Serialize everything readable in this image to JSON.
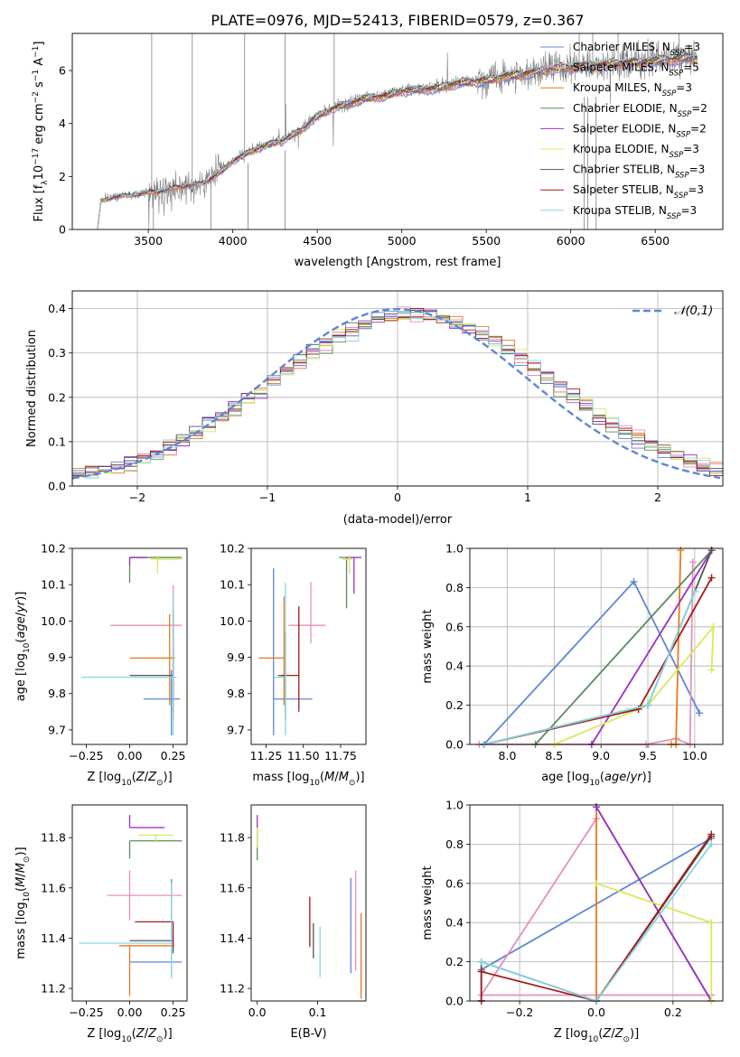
{
  "title": "PLATE=0976, MJD=52413, FIBERID=0579, z=0.367",
  "colors": {
    "chabrier_miles": "#5e86d6",
    "salpeter_miles": "#e58fbd",
    "kroupa_miles": "#e8791f",
    "chabrier_elodie": "#5c8a5c",
    "salpeter_elodie": "#9b30c9",
    "kroupa_elodie": "#d5ea5a",
    "chabrier_stelib": "#555555",
    "salpeter_stelib": "#a51b1b",
    "kroupa_stelib": "#86d5e0",
    "data": "#808080",
    "normal": "#5e86d6"
  },
  "legend": [
    {
      "label": "Chabrier MILES, N",
      "sub": "SSP",
      "suffix": "=3",
      "color": "chabrier_miles"
    },
    {
      "label": "Salpeter MILES, N",
      "sub": "SSP",
      "suffix": "=5",
      "color": "salpeter_miles"
    },
    {
      "label": "Kroupa MILES, N",
      "sub": "SSP",
      "suffix": "=3",
      "color": "kroupa_miles"
    },
    {
      "label": "Chabrier ELODIE, N",
      "sub": "SSP",
      "suffix": "=2",
      "color": "chabrier_elodie"
    },
    {
      "label": "Salpeter ELODIE, N",
      "sub": "SSP",
      "suffix": "=2",
      "color": "salpeter_elodie"
    },
    {
      "label": "Kroupa ELODIE, N",
      "sub": "SSP",
      "suffix": "=3",
      "color": "kroupa_elodie"
    },
    {
      "label": "Chabrier STELIB, N",
      "sub": "SSP",
      "suffix": "=3",
      "color": "chabrier_stelib"
    },
    {
      "label": "Salpeter STELIB, N",
      "sub": "SSP",
      "suffix": "=3",
      "color": "salpeter_stelib"
    },
    {
      "label": "Kroupa STELIB, N",
      "sub": "SSP",
      "suffix": "=3",
      "color": "kroupa_stelib"
    }
  ],
  "chart_data": [
    {
      "id": "spectrum",
      "type": "line",
      "xlabel": "wavelength [Angstrom, rest frame]",
      "ylabel": "Flux [f_λ 10^-17 erg cm^-2 s^-1 A^-1]",
      "xlim": [
        3050,
        6900
      ],
      "ylim": [
        0,
        7.4
      ],
      "xticks": [
        3500,
        4000,
        4500,
        5000,
        5500,
        6000,
        6500
      ],
      "yticks": [
        0,
        2,
        4,
        6
      ],
      "grid": false,
      "legend_position": "top-right",
      "continuum_points": [
        [
          3200,
          0.0
        ],
        [
          3220,
          1.1
        ],
        [
          3300,
          1.25
        ],
        [
          3400,
          1.3
        ],
        [
          3500,
          1.4
        ],
        [
          3600,
          1.5
        ],
        [
          3700,
          1.65
        ],
        [
          3800,
          1.7
        ],
        [
          3850,
          1.85
        ],
        [
          3950,
          2.3
        ],
        [
          4000,
          2.6
        ],
        [
          4100,
          2.95
        ],
        [
          4200,
          3.2
        ],
        [
          4300,
          3.4
        ],
        [
          4400,
          3.75
        ],
        [
          4500,
          4.3
        ],
        [
          4600,
          4.6
        ],
        [
          4700,
          4.8
        ],
        [
          4800,
          5.0
        ],
        [
          4900,
          5.05
        ],
        [
          5000,
          5.25
        ],
        [
          5100,
          5.3
        ],
        [
          5200,
          5.35
        ],
        [
          5300,
          5.5
        ],
        [
          5400,
          5.6
        ],
        [
          5500,
          5.65
        ],
        [
          5600,
          5.8
        ],
        [
          5700,
          5.85
        ],
        [
          5800,
          6.0
        ],
        [
          5900,
          6.1
        ],
        [
          6000,
          6.15
        ],
        [
          6100,
          6.2
        ],
        [
          6200,
          6.25
        ],
        [
          6300,
          6.3
        ],
        [
          6400,
          6.35
        ],
        [
          6500,
          6.4
        ],
        [
          6600,
          6.45
        ],
        [
          6700,
          6.5
        ],
        [
          6750,
          6.5
        ]
      ]
    },
    {
      "id": "residual-histogram",
      "type": "histogram",
      "xlabel": "(data-model)/error",
      "ylabel": "Normed distribution",
      "xlim": [
        -2.5,
        2.5
      ],
      "ylim": [
        0,
        0.44
      ],
      "xticks": [
        -2,
        -1,
        0,
        1,
        2
      ],
      "yticks": [
        0.0,
        0.1,
        0.2,
        0.3,
        0.4
      ],
      "grid": true,
      "legend_position": "top-right",
      "reference_curve": "𝒩(0,1)",
      "bin_width": 0.1
    },
    {
      "id": "age-vs-Z",
      "type": "errorbar",
      "xlabel": "Z [log10(Z/Z⊙)]",
      "ylabel": "age  [log10(age/yr)]",
      "xlim": [
        -0.33,
        0.33
      ],
      "ylim": [
        9.66,
        10.2
      ],
      "xticks": [
        -0.25,
        0.0,
        0.25
      ],
      "yticks": [
        9.7,
        9.8,
        9.9,
        10.0,
        10.1,
        10.2
      ],
      "points": [
        {
          "color": "chabrier_miles",
          "x": 0.24,
          "xerr": [
            0.16,
            0.05
          ],
          "y": 9.785,
          "yerr": [
            0.1,
            0.08
          ]
        },
        {
          "color": "salpeter_miles",
          "x": 0.25,
          "xerr": [
            0.36,
            0.05
          ],
          "y": 9.988,
          "yerr": [
            0.13,
            0.11
          ]
        },
        {
          "color": "kroupa_miles",
          "x": 0.23,
          "xerr": [
            0.23,
            0.03
          ],
          "y": 9.898,
          "yerr": [
            0.13,
            0.12
          ]
        },
        {
          "color": "chabrier_elodie",
          "x": 0.0,
          "xerr": [
            0.0,
            0.3
          ],
          "y": 10.175,
          "yerr": [
            0.07,
            0.0
          ]
        },
        {
          "color": "salpeter_elodie",
          "x": 0.0,
          "xerr": [
            0.0,
            0.1
          ],
          "y": 10.175,
          "yerr": [
            0.02,
            0.0
          ]
        },
        {
          "color": "kroupa_elodie",
          "x": 0.16,
          "xerr": [
            0.04,
            0.14
          ],
          "y": 10.17,
          "yerr": [
            0.04,
            0.01
          ]
        },
        {
          "color": "chabrier_stelib",
          "x": 0.25,
          "xerr": [
            0.25,
            0.0
          ],
          "y": 9.85,
          "yerr": [
            0.12,
            0.08
          ]
        },
        {
          "color": "salpeter_stelib",
          "x": 0.25,
          "xerr": [
            0.0,
            0.0
          ],
          "y": 9.85,
          "yerr": [
            0.1,
            0.18
          ]
        },
        {
          "color": "kroupa_stelib",
          "x": 0.25,
          "xerr": [
            0.53,
            0.02
          ],
          "y": 9.845,
          "yerr": [
            0.16,
            0.23
          ]
        }
      ]
    },
    {
      "id": "age-vs-mass",
      "type": "errorbar",
      "xlabel": "mass [log10(M/M⊙)]",
      "ylabel": "",
      "xlim": [
        11.15,
        11.92
      ],
      "ylim": [
        9.66,
        10.2
      ],
      "xticks": [
        11.25,
        11.5,
        11.75
      ],
      "yticks": [
        9.7,
        9.8,
        9.9,
        10.0,
        10.1,
        10.2
      ],
      "points": [
        {
          "color": "chabrier_miles",
          "x": 11.3,
          "xerr": [
            0.0,
            0.26
          ],
          "y": 9.785,
          "yerr": [
            0.1,
            0.36
          ]
        },
        {
          "color": "salpeter_miles",
          "x": 11.55,
          "xerr": [
            0.15,
            0.1
          ],
          "y": 9.988,
          "yerr": [
            0.05,
            0.12
          ]
        },
        {
          "color": "kroupa_miles",
          "x": 11.37,
          "xerr": [
            0.17,
            0.0
          ],
          "y": 9.898,
          "yerr": [
            0.13,
            0.17
          ]
        },
        {
          "color": "chabrier_elodie",
          "x": 11.79,
          "xerr": [
            0.05,
            0.0
          ],
          "y": 10.175,
          "yerr": [
            0.14,
            0.0
          ]
        },
        {
          "color": "salpeter_elodie",
          "x": 11.84,
          "xerr": [
            0.05,
            0.05
          ],
          "y": 10.175,
          "yerr": [
            0.1,
            0.0
          ]
        },
        {
          "color": "kroupa_elodie",
          "x": 11.81,
          "xerr": [
            0.05,
            0.02
          ],
          "y": 10.17,
          "yerr": [
            0.04,
            0.01
          ]
        },
        {
          "color": "chabrier_stelib",
          "x": 11.38,
          "xerr": [
            0.05,
            0.0
          ],
          "y": 9.85,
          "yerr": [
            0.12,
            0.12
          ]
        },
        {
          "color": "salpeter_stelib",
          "x": 11.47,
          "xerr": [
            0.12,
            0.0
          ],
          "y": 9.85,
          "yerr": [
            0.1,
            0.19
          ]
        },
        {
          "color": "kroupa_stelib",
          "x": 11.38,
          "xerr": [
            0.08,
            0.0
          ],
          "y": 9.845,
          "yerr": [
            0.16,
            0.26
          ]
        }
      ]
    },
    {
      "id": "mass-weight-vs-age",
      "type": "line",
      "xlabel": "age  [log10(age/yr)]",
      "ylabel": "mass weight",
      "xlim": [
        7.6,
        10.3
      ],
      "ylim": [
        0,
        1.0
      ],
      "xticks": [
        8.0,
        8.5,
        9.0,
        9.5,
        10.0
      ],
      "yticks": [
        0.0,
        0.2,
        0.4,
        0.6,
        0.8,
        1.0
      ],
      "grid": true,
      "series": [
        {
          "color": "chabrier_miles",
          "x": [
            10.05,
            9.35,
            7.75
          ],
          "y": [
            0.16,
            0.83,
            0.0
          ]
        },
        {
          "color": "salpeter_miles",
          "x": [
            9.98,
            9.95,
            9.8,
            9.48,
            7.7
          ],
          "y": [
            0.93,
            0.0,
            0.03,
            0.0,
            0.0
          ]
        },
        {
          "color": "kroupa_miles",
          "x": [
            9.75,
            9.8,
            9.85
          ],
          "y": [
            0.0,
            0.0,
            0.99
          ]
        },
        {
          "color": "chabrier_elodie",
          "x": [
            10.18,
            8.3
          ],
          "y": [
            0.99,
            0.0
          ]
        },
        {
          "color": "salpeter_elodie",
          "x": [
            10.18,
            8.9
          ],
          "y": [
            0.99,
            0.0
          ]
        },
        {
          "color": "kroupa_elodie",
          "x": [
            10.18,
            10.2,
            9.5,
            8.5
          ],
          "y": [
            0.38,
            0.6,
            0.2,
            0.0
          ]
        },
        {
          "color": "chabrier_stelib",
          "x": [
            10.18,
            9.5,
            7.75
          ],
          "y": [
            0.99,
            0.2,
            0.0
          ]
        },
        {
          "color": "salpeter_stelib",
          "x": [
            10.18,
            9.4,
            7.75
          ],
          "y": [
            0.85,
            0.18,
            0.0
          ]
        },
        {
          "color": "kroupa_stelib",
          "x": [
            10.0,
            9.5,
            7.75
          ],
          "y": [
            0.78,
            0.2,
            0.0
          ]
        }
      ]
    },
    {
      "id": "mass-vs-Z",
      "type": "errorbar",
      "xlabel": "Z [log10(Z/Z⊙)]",
      "ylabel": "mass [log10(M/M⊙)]",
      "xlim": [
        -0.33,
        0.33
      ],
      "ylim": [
        11.15,
        11.93
      ],
      "xticks": [
        -0.25,
        0.0,
        0.25
      ],
      "yticks": [
        11.2,
        11.4,
        11.6,
        11.8
      ],
      "points": [
        {
          "color": "chabrier_miles",
          "x": 0.24,
          "xerr": [
            0.24,
            0.06
          ],
          "y": 11.305,
          "yerr": [
            0.05,
            0.33
          ]
        },
        {
          "color": "salpeter_miles",
          "x": 0.0,
          "xerr": [
            0.13,
            0.3
          ],
          "y": 11.57,
          "yerr": [
            0.1,
            0.1
          ]
        },
        {
          "color": "kroupa_miles",
          "x": 0.0,
          "xerr": [
            0.06,
            0.25
          ],
          "y": 11.37,
          "yerr": [
            0.2,
            0.0
          ]
        },
        {
          "color": "chabrier_elodie",
          "x": 0.0,
          "xerr": [
            0.0,
            0.3
          ],
          "y": 11.787,
          "yerr": [
            0.07,
            0.0
          ]
        },
        {
          "color": "salpeter_elodie",
          "x": 0.0,
          "xerr": [
            0.0,
            0.2
          ],
          "y": 11.84,
          "yerr": [
            0.0,
            0.05
          ]
        },
        {
          "color": "kroupa_elodie",
          "x": 0.15,
          "xerr": [
            0.1,
            0.1
          ],
          "y": 11.81,
          "yerr": [
            0.03,
            0.0
          ]
        },
        {
          "color": "chabrier_stelib",
          "x": 0.25,
          "xerr": [
            0.25,
            0.0
          ],
          "y": 11.39,
          "yerr": [
            0.05,
            0.0
          ]
        },
        {
          "color": "salpeter_stelib",
          "x": 0.25,
          "xerr": [
            0.22,
            0.0
          ],
          "y": 11.465,
          "yerr": [
            0.1,
            0.0
          ]
        },
        {
          "color": "kroupa_stelib",
          "x": 0.24,
          "xerr": [
            0.53,
            0.0
          ],
          "y": 11.38,
          "yerr": [
            0.14,
            0.24
          ]
        }
      ]
    },
    {
      "id": "mass-vs-ebv",
      "type": "errorbar",
      "xlabel": "E(B-V)",
      "ylabel": "",
      "xlim": [
        -0.01,
        0.18
      ],
      "ylim": [
        11.15,
        11.93
      ],
      "xticks": [
        0.0,
        0.1
      ],
      "yticks": [
        11.2,
        11.4,
        11.6,
        11.8
      ],
      "points": [
        {
          "color": "chabrier_miles",
          "x": 0.155,
          "xerr": [
            0.0,
            0.0
          ],
          "y": 11.45,
          "yerr": [
            0.19,
            0.19
          ]
        },
        {
          "color": "salpeter_miles",
          "x": 0.163,
          "xerr": [
            0.0,
            0.0
          ],
          "y": 11.47,
          "yerr": [
            0.2,
            0.2
          ]
        },
        {
          "color": "kroupa_miles",
          "x": 0.172,
          "xerr": [
            0.0,
            0.0
          ],
          "y": 11.33,
          "yerr": [
            0.17,
            0.17
          ]
        },
        {
          "color": "chabrier_elodie",
          "x": 0.0,
          "xerr": [
            0.0,
            0.0
          ],
          "y": 11.77,
          "yerr": [
            0.06,
            0.06
          ]
        },
        {
          "color": "salpeter_elodie",
          "x": 0.0,
          "xerr": [
            0.0,
            0.0
          ],
          "y": 11.84,
          "yerr": [
            0.05,
            0.05
          ]
        },
        {
          "color": "kroupa_elodie",
          "x": 0.0,
          "xerr": [
            0.0,
            0.0
          ],
          "y": 11.8,
          "yerr": [
            0.04,
            0.04
          ]
        },
        {
          "color": "chabrier_stelib",
          "x": 0.093,
          "xerr": [
            0.0,
            0.0
          ],
          "y": 11.39,
          "yerr": [
            0.07,
            0.07
          ]
        },
        {
          "color": "salpeter_stelib",
          "x": 0.087,
          "xerr": [
            0.0,
            0.0
          ],
          "y": 11.465,
          "yerr": [
            0.1,
            0.1
          ]
        },
        {
          "color": "kroupa_stelib",
          "x": 0.104,
          "xerr": [
            0.0,
            0.0
          ],
          "y": 11.345,
          "yerr": [
            0.1,
            0.1
          ]
        }
      ]
    },
    {
      "id": "mass-weight-vs-Z",
      "type": "line",
      "xlabel": "Z [log10(Z/Z⊙)]",
      "ylabel": "mass weight",
      "xlim": [
        -0.33,
        0.33
      ],
      "ylim": [
        0,
        1.0
      ],
      "xticks": [
        -0.2,
        0.0,
        0.2
      ],
      "yticks": [
        0.0,
        0.2,
        0.4,
        0.6,
        0.8,
        1.0
      ],
      "grid": true,
      "series": [
        {
          "color": "chabrier_miles",
          "x": [
            0.3,
            -0.3,
            -0.3
          ],
          "y": [
            0.83,
            0.16,
            0.0
          ]
        },
        {
          "color": "salpeter_miles",
          "x": [
            0.0,
            -0.3,
            0.3
          ],
          "y": [
            0.93,
            0.03,
            0.03
          ]
        },
        {
          "color": "kroupa_miles",
          "x": [
            0.0,
            0.0,
            0.0
          ],
          "y": [
            0.0,
            0.99,
            0.0
          ]
        },
        {
          "color": "chabrier_elodie",
          "x": [
            0.0,
            0.3
          ],
          "y": [
            0.99,
            0.0
          ]
        },
        {
          "color": "salpeter_elodie",
          "x": [
            0.0,
            0.3
          ],
          "y": [
            0.99,
            0.0
          ]
        },
        {
          "color": "kroupa_elodie",
          "x": [
            0.0,
            0.3,
            0.3
          ],
          "y": [
            0.6,
            0.4,
            0.0
          ]
        },
        {
          "color": "chabrier_stelib",
          "x": [
            0.3,
            0.0,
            -0.3,
            -0.3
          ],
          "y": [
            0.84,
            0.0,
            0.2,
            0.15
          ]
        },
        {
          "color": "salpeter_stelib",
          "x": [
            0.3,
            0.0,
            -0.3,
            -0.3
          ],
          "y": [
            0.85,
            0.0,
            0.15,
            0.0
          ]
        },
        {
          "color": "kroupa_stelib",
          "x": [
            0.3,
            0.0,
            -0.3
          ],
          "y": [
            0.8,
            0.0,
            0.2
          ]
        }
      ]
    }
  ]
}
